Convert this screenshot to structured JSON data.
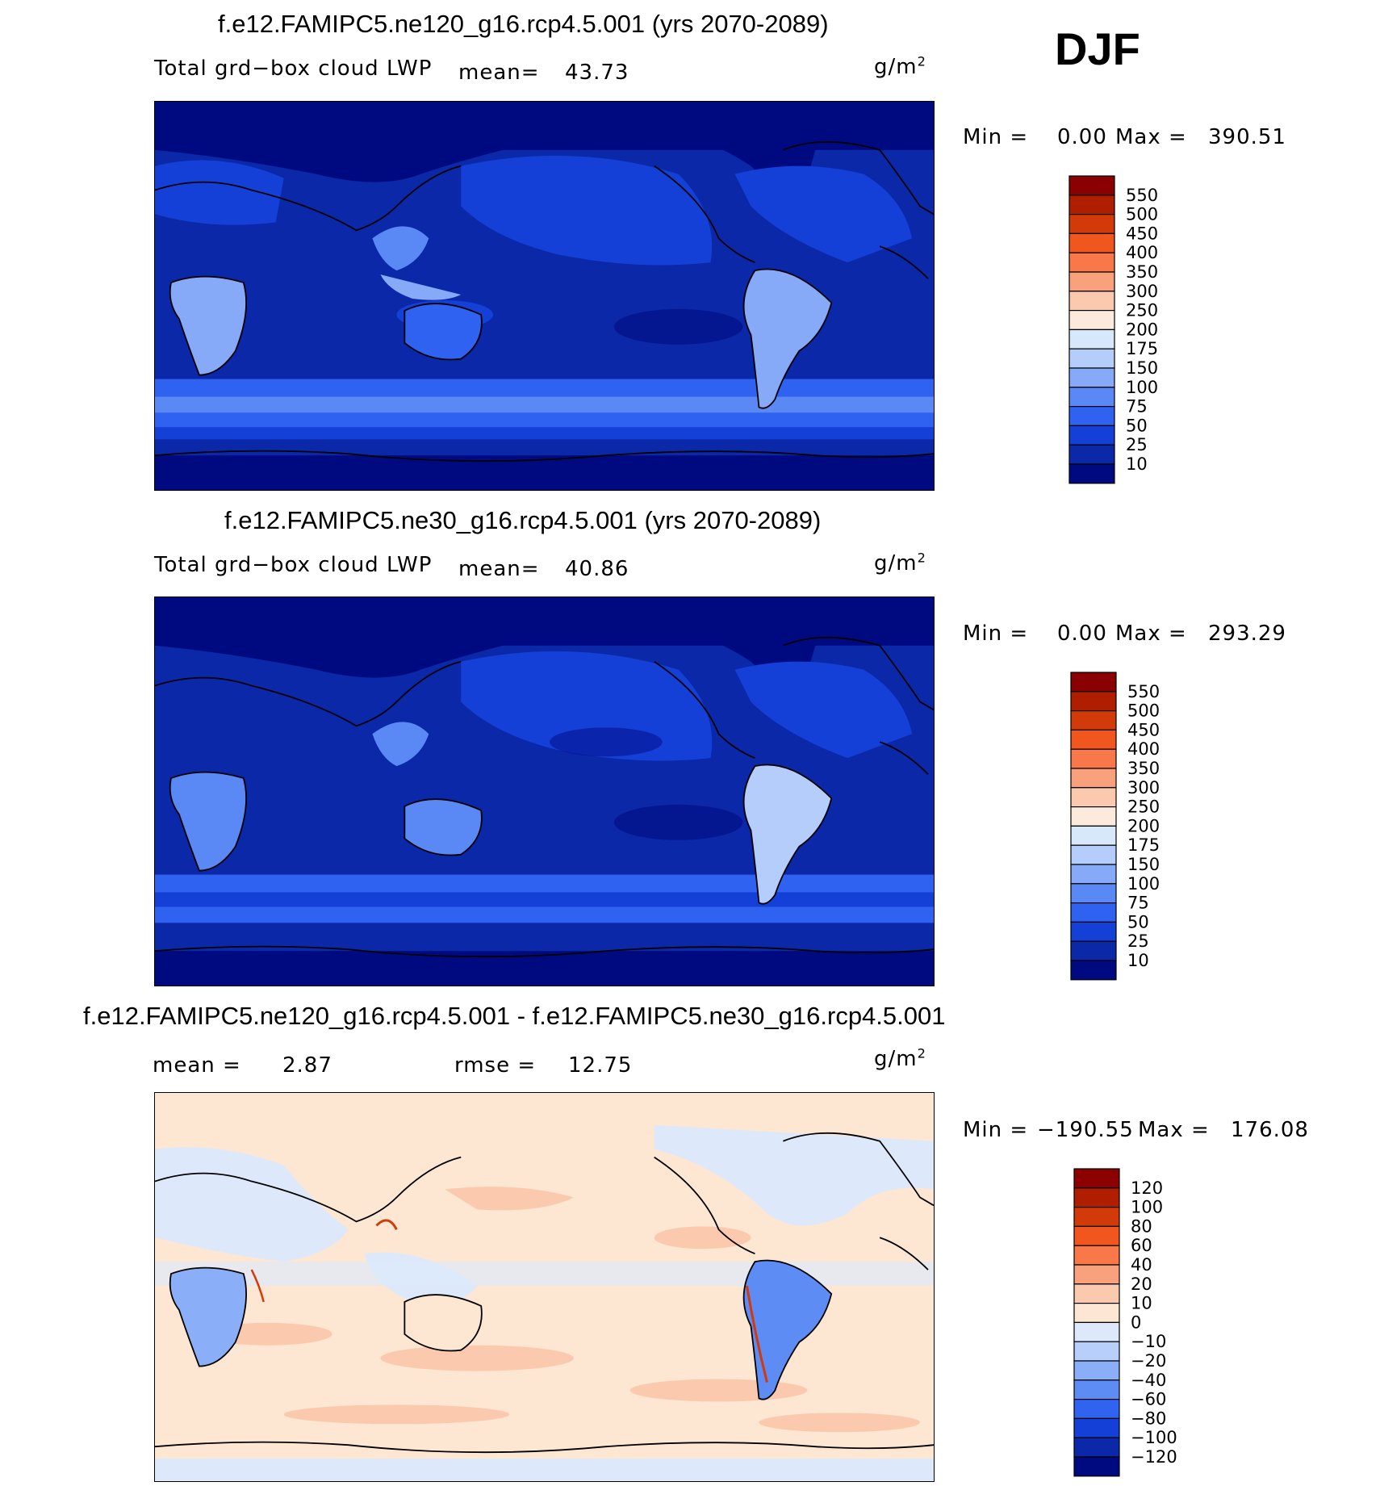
{
  "season": "DJF",
  "panels": [
    {
      "title": "f.e12.FAMIPC5.ne120_g16.rcp4.5.001 (yrs 2070-2089)",
      "variable": "Total grd−box cloud LWP",
      "mean_label": "mean=",
      "mean_value": "43.73",
      "units": "g/m",
      "units_sup": "2",
      "min_label": "Min =",
      "min_value": "0.00",
      "max_label": "Max =",
      "max_value": "390.51"
    },
    {
      "title": "f.e12.FAMIPC5.ne30_g16.rcp4.5.001 (yrs 2070-2089)",
      "variable": "Total grd−box cloud LWP",
      "mean_label": "mean=",
      "mean_value": "40.86",
      "units": "g/m",
      "units_sup": "2",
      "min_label": "Min =",
      "min_value": "0.00",
      "max_label": "Max =",
      "max_value": "293.29"
    },
    {
      "title": "f.e12.FAMIPC5.ne120_g16.rcp4.5.001 - f.e12.FAMIPC5.ne30_g16.rcp4.5.001",
      "mean_label": "mean =",
      "mean_value": "2.87",
      "rmse_label": "rmse =",
      "rmse_value": "12.75",
      "units": "g/m",
      "units_sup": "2",
      "min_label": "Min =",
      "min_value": "−190.55",
      "max_label": "Max =",
      "max_value": "176.08"
    }
  ],
  "legends": {
    "lwp": {
      "labels": [
        "550",
        "500",
        "450",
        "400",
        "350",
        "300",
        "250",
        "200",
        "175",
        "150",
        "100",
        "75",
        "50",
        "25",
        "10"
      ],
      "colors": [
        "#8b0000",
        "#b01e00",
        "#d23a0a",
        "#f0561e",
        "#f8784a",
        "#f9a07c",
        "#fbc9ae",
        "#fcebdc",
        "#d8e8fb",
        "#b4cdfb",
        "#86aaf8",
        "#5a88f5",
        "#2f62f0",
        "#1440d8",
        "#0a28a8",
        "#000a80"
      ]
    },
    "diff": {
      "labels": [
        "120",
        "100",
        "80",
        "60",
        "40",
        "20",
        "10",
        "0",
        "−10",
        "−20",
        "−40",
        "−60",
        "−80",
        "−100",
        "−120"
      ],
      "colors": [
        "#8b0000",
        "#b01e00",
        "#d23a0a",
        "#f0561e",
        "#f8784a",
        "#f9a07c",
        "#fbc9ae",
        "#fde6d2",
        "#dde9fb",
        "#b8cffb",
        "#8aaef8",
        "#5e8cf5",
        "#3064f0",
        "#1440d8",
        "#0a28a8",
        "#000a80"
      ]
    }
  }
}
